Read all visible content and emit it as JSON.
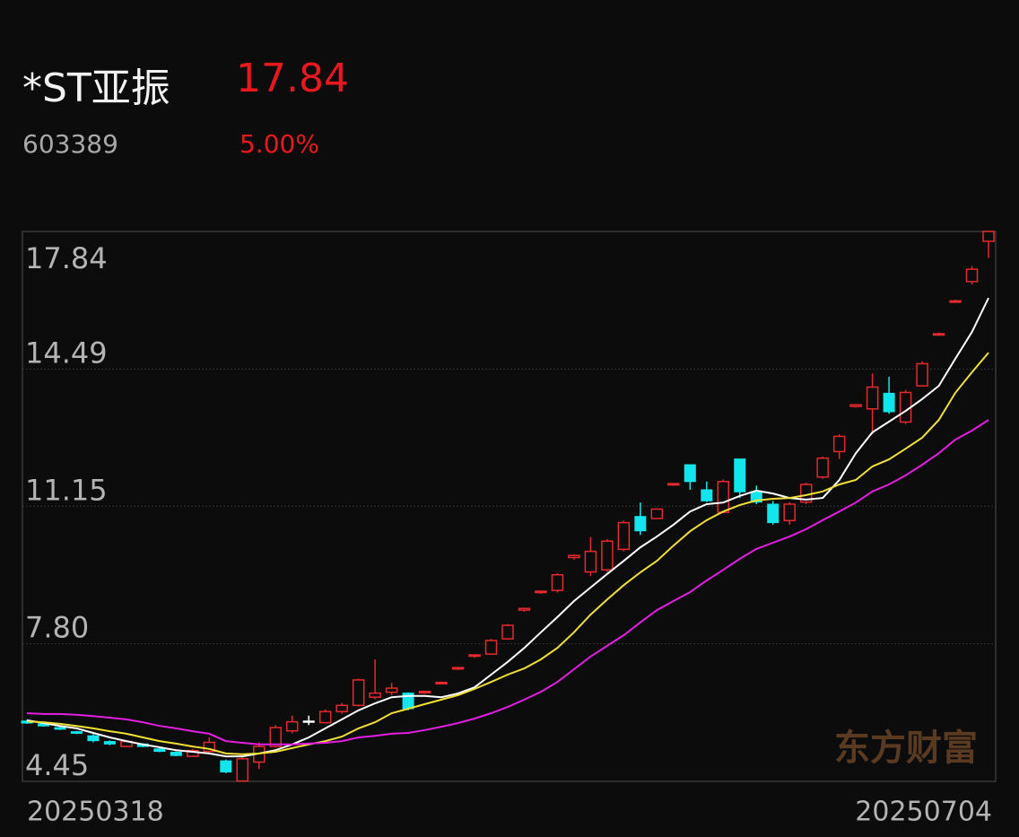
{
  "chart_data": {
    "type": "candlestick",
    "title": "*ST亚振",
    "price": "17.84",
    "code": "603389",
    "change": "5.00%",
    "watermark": "东方财富",
    "categories": [
      "20250318",
      null,
      null,
      null,
      null,
      null,
      null,
      null,
      null,
      null,
      null,
      null,
      null,
      null,
      null,
      null,
      null,
      null,
      null,
      null,
      null,
      null,
      null,
      null,
      null,
      null,
      null,
      null,
      null,
      null,
      null,
      null,
      null,
      null,
      null,
      null,
      null,
      null,
      null,
      null,
      null,
      null,
      null,
      null,
      null,
      null,
      null,
      null,
      null,
      null,
      null,
      null,
      null,
      null,
      null,
      null,
      null,
      null,
      "20250704"
    ],
    "open": [
      5.92,
      5.85,
      5.76,
      5.66,
      5.56,
      5.42,
      5.3,
      5.36,
      5.24,
      5.16,
      5.06,
      5.18,
      4.95,
      4.46,
      4.92,
      5.3,
      5.68,
      5.92,
      5.88,
      6.15,
      6.3,
      6.5,
      6.62,
      6.6,
      6.62,
      6.85,
      7.2,
      7.5,
      7.55,
      7.92,
      8.62,
      9.06,
      9.1,
      9.9,
      9.55,
      9.6,
      10.1,
      10.9,
      10.85,
      11.68,
      12.16,
      11.55,
      11.0,
      12.3,
      11.5,
      11.2,
      10.8,
      11.25,
      11.86,
      12.48,
      13.58,
      13.52,
      13.9,
      13.2,
      14.08,
      15.32,
      16.12,
      16.62,
      17.6
    ],
    "high": [
      5.95,
      5.88,
      5.78,
      5.68,
      5.6,
      5.45,
      5.45,
      5.38,
      5.26,
      5.18,
      5.24,
      5.52,
      4.98,
      5.06,
      5.4,
      5.82,
      6.05,
      6.05,
      6.2,
      6.36,
      6.95,
      7.42,
      6.85,
      6.62,
      6.65,
      6.88,
      7.24,
      7.54,
      7.92,
      8.28,
      8.68,
      9.1,
      9.52,
      9.98,
      10.4,
      10.35,
      10.8,
      11.24,
      11.1,
      11.72,
      12.16,
      11.75,
      11.8,
      12.3,
      11.65,
      11.28,
      11.25,
      11.72,
      12.36,
      12.9,
      13.64,
      14.38,
      14.3,
      13.98,
      14.68,
      15.38,
      16.18,
      17.0,
      17.84
    ],
    "low": [
      5.85,
      5.78,
      5.7,
      5.6,
      5.4,
      5.33,
      5.28,
      5.28,
      5.16,
      5.06,
      5.04,
      5.14,
      4.65,
      4.45,
      4.75,
      5.28,
      5.62,
      5.82,
      5.86,
      6.1,
      6.28,
      6.45,
      6.55,
      6.18,
      6.58,
      6.82,
      7.16,
      7.46,
      7.55,
      7.9,
      8.58,
      9.02,
      9.05,
      9.85,
      9.45,
      9.55,
      10.05,
      10.45,
      10.85,
      11.65,
      11.55,
      11.25,
      10.98,
      11.35,
      11.2,
      10.7,
      10.7,
      11.2,
      11.82,
      12.3,
      13.55,
      12.9,
      13.4,
      13.15,
      14.06,
      15.3,
      16.1,
      16.55,
      17.2
    ],
    "close": [
      5.87,
      5.8,
      5.72,
      5.62,
      5.44,
      5.36,
      5.42,
      5.3,
      5.18,
      5.08,
      5.2,
      5.4,
      4.68,
      5.0,
      5.3,
      5.76,
      5.9,
      5.92,
      6.15,
      6.3,
      6.92,
      6.6,
      6.72,
      6.22,
      6.64,
      6.86,
      7.22,
      7.53,
      7.88,
      8.25,
      8.66,
      9.08,
      9.48,
      9.95,
      10.05,
      10.3,
      10.75,
      10.55,
      11.08,
      11.7,
      11.75,
      11.28,
      11.75,
      11.5,
      11.25,
      10.75,
      11.2,
      11.68,
      12.32,
      12.85,
      13.62,
      14.05,
      13.45,
      13.92,
      14.62,
      15.35,
      16.15,
      16.92,
      17.84
    ],
    "up_color": "#e5292e",
    "down_color": "#12e6ec",
    "flat_color": "#ffffff",
    "ma": [
      {
        "color": "#ffffff",
        "values": [
          5.94,
          5.87,
          5.8,
          5.74,
          5.63,
          5.52,
          5.43,
          5.35,
          5.28,
          5.21,
          5.17,
          5.13,
          5.06,
          5.06,
          5.13,
          5.21,
          5.35,
          5.52,
          5.74,
          5.96,
          6.18,
          6.35,
          6.5,
          6.53,
          6.53,
          6.5,
          6.59,
          6.74,
          7.05,
          7.36,
          7.7,
          8.08,
          8.45,
          8.84,
          9.17,
          9.5,
          9.82,
          10.15,
          10.41,
          10.7,
          11.02,
          11.2,
          11.24,
          11.4,
          11.53,
          11.46,
          11.35,
          11.31,
          11.35,
          11.79,
          12.44,
          12.95,
          13.21,
          13.47,
          13.76,
          14.08,
          14.74,
          15.39,
          16.22
        ]
      },
      {
        "color": "#f0e036",
        "values": [
          5.91,
          5.89,
          5.85,
          5.8,
          5.74,
          5.67,
          5.61,
          5.52,
          5.43,
          5.37,
          5.3,
          5.24,
          5.13,
          5.11,
          5.13,
          5.17,
          5.26,
          5.35,
          5.43,
          5.54,
          5.74,
          5.89,
          6.11,
          6.22,
          6.33,
          6.44,
          6.55,
          6.7,
          6.87,
          7.05,
          7.2,
          7.42,
          7.7,
          8.08,
          8.51,
          8.88,
          9.23,
          9.54,
          9.82,
          10.19,
          10.54,
          10.81,
          11.02,
          11.18,
          11.29,
          11.33,
          11.35,
          11.42,
          11.51,
          11.68,
          11.79,
          12.12,
          12.29,
          12.55,
          12.82,
          13.25,
          13.91,
          14.41,
          14.89
        ]
      },
      {
        "color": "#e21fe0",
        "values": [
          6.11,
          6.09,
          6.09,
          6.07,
          6.04,
          6.0,
          5.96,
          5.89,
          5.8,
          5.74,
          5.67,
          5.61,
          5.43,
          5.39,
          5.35,
          5.35,
          5.35,
          5.37,
          5.39,
          5.43,
          5.52,
          5.56,
          5.61,
          5.63,
          5.7,
          5.78,
          5.87,
          5.98,
          6.11,
          6.26,
          6.44,
          6.63,
          6.87,
          7.18,
          7.49,
          7.75,
          8.01,
          8.32,
          8.62,
          8.84,
          9.06,
          9.34,
          9.6,
          9.87,
          10.11,
          10.26,
          10.41,
          10.59,
          10.81,
          11.02,
          11.24,
          11.51,
          11.68,
          11.9,
          12.16,
          12.44,
          12.77,
          12.99,
          13.25
        ]
      }
    ],
    "ylim": [
      4.45,
      17.84
    ],
    "yticks": [
      17.84,
      14.49,
      11.15,
      {
        "value": 7.8,
        "label": "7.80"
      },
      4.45
    ],
    "grid": true
  }
}
